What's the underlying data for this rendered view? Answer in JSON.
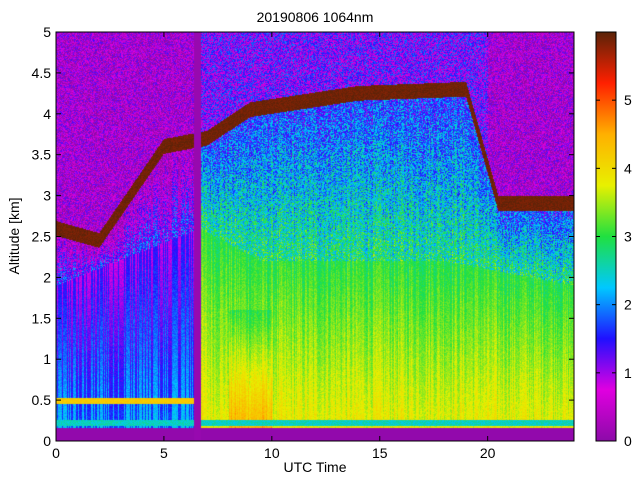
{
  "chart_data": {
    "type": "heatmap",
    "title": "20190806 1064nm",
    "xlabel": "UTC Time",
    "ylabel": "Altitude [km]",
    "xlim": [
      0,
      24
    ],
    "ylim": [
      0,
      5
    ],
    "xticks": [
      0,
      5,
      10,
      15,
      20
    ],
    "yticks": [
      0,
      0.5,
      1,
      1.5,
      2,
      2.5,
      3,
      3.5,
      4,
      4.5,
      5
    ],
    "colorbar": {
      "range": [
        0,
        6
      ],
      "ticks": [
        0,
        1,
        2,
        3,
        4,
        5
      ],
      "colormap": [
        "#8c0aa8",
        "#e000e0",
        "#2010ff",
        "#00c8ff",
        "#20e040",
        "#e8f000",
        "#ffb000",
        "#ff2000",
        "#5a2308"
      ]
    },
    "grid": false,
    "no_data_gaps_utc": [
      [
        6.4,
        6.7
      ]
    ],
    "features": {
      "surface_band": {
        "altitude_km": [
          0.18,
          0.26
        ],
        "value": 2.5
      },
      "low_layer_0_to_6h": {
        "altitude_km": [
          0.45,
          0.52
        ],
        "value": 4.2
      },
      "boundary_layer_top_km": [
        [
          0,
          1.9
        ],
        [
          6.7,
          2.6
        ],
        [
          9.5,
          2.2
        ],
        [
          14,
          2.2
        ],
        [
          18,
          2.2
        ],
        [
          24,
          1.9
        ]
      ],
      "aerosol_core_value": 3.9,
      "cloud_base_km": [
        [
          0,
          2.6
        ],
        [
          2,
          2.45
        ],
        [
          5,
          3.6
        ],
        [
          7,
          3.7
        ],
        [
          9,
          4.05
        ],
        [
          14,
          4.25
        ],
        [
          19,
          4.3
        ],
        [
          20.5,
          2.9
        ]
      ]
    }
  }
}
